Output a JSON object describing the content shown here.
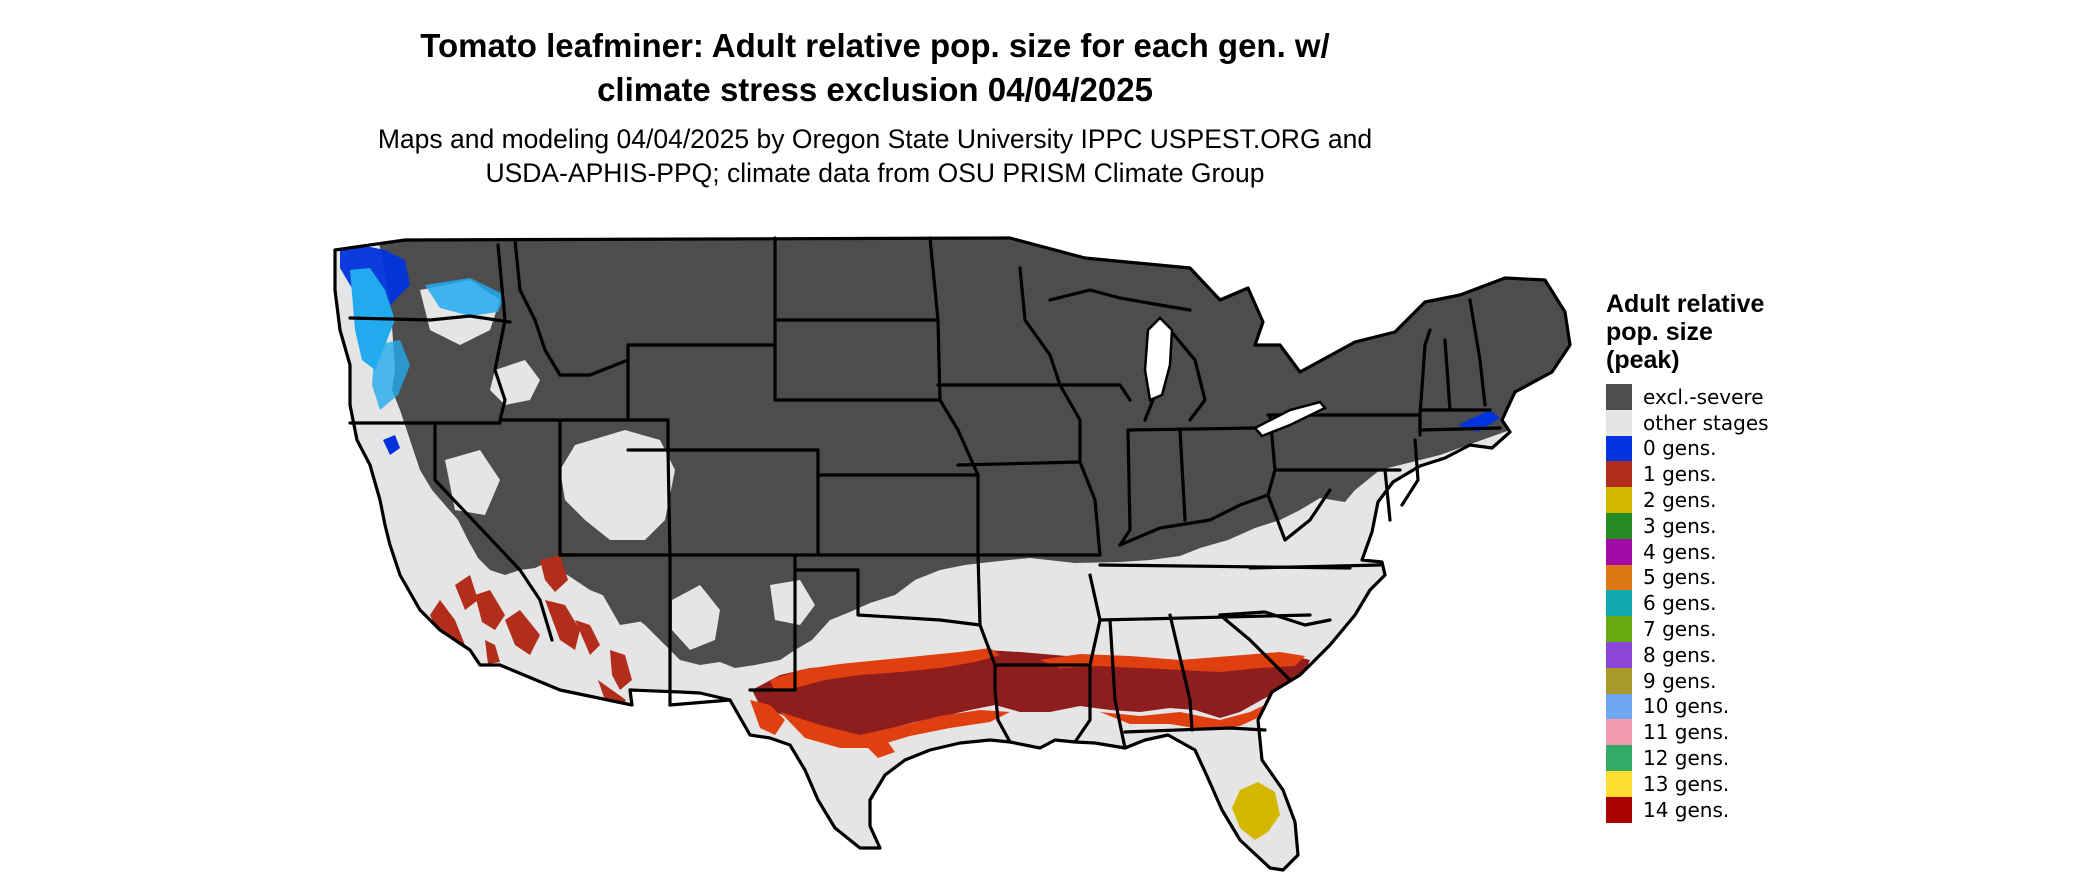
{
  "header": {
    "title_line1": "Tomato leafminer: Adult relative pop. size for each gen. w/",
    "title_line2": "climate stress exclusion 04/04/2025",
    "subtitle_line1": "Maps and modeling 04/04/2025 by Oregon State University IPPC USPEST.ORG and",
    "subtitle_line2": "USDA-APHIS-PPQ; climate data from OSU PRISM Climate Group"
  },
  "legend": {
    "title": [
      "Adult relative",
      "pop. size",
      "(peak)"
    ],
    "items": [
      {
        "label": "excl.-severe",
        "color": "#4d4d4d"
      },
      {
        "label": "other stages",
        "color": "#e5e5e5"
      },
      {
        "label": "0 gens.",
        "color": "#0033dd"
      },
      {
        "label": "1 gens.",
        "color": "#b22d1a"
      },
      {
        "label": "2 gens.",
        "color": "#d4b800"
      },
      {
        "label": "3 gens.",
        "color": "#238b22"
      },
      {
        "label": "4 gens.",
        "color": "#a30aa6"
      },
      {
        "label": "5 gens.",
        "color": "#dd7711"
      },
      {
        "label": "6 gens.",
        "color": "#10a9ae"
      },
      {
        "label": "7 gens.",
        "color": "#66aa11"
      },
      {
        "label": "8 gens.",
        "color": "#8c47d9"
      },
      {
        "label": "9 gens.",
        "color": "#a89928"
      },
      {
        "label": "10 gens.",
        "color": "#6fa8f0"
      },
      {
        "label": "11 gens.",
        "color": "#f09ab0"
      },
      {
        "label": "12 gens.",
        "color": "#33aa66"
      },
      {
        "label": "13 gens.",
        "color": "#ffdd33"
      },
      {
        "label": "14 gens.",
        "color": "#aa0000"
      }
    ]
  },
  "map": {
    "region": "Contiguous United States",
    "colors": {
      "excluded": "#4d4d4d",
      "other": "#e5e5e5",
      "one_gen_dark": "#8e1e1e",
      "one_gen_bright": "#e0400f",
      "two_gen": "#d4b800",
      "zero_gen": "#0033dd",
      "zero_gen_light": "#22aaee",
      "boundary": "#000000"
    }
  }
}
